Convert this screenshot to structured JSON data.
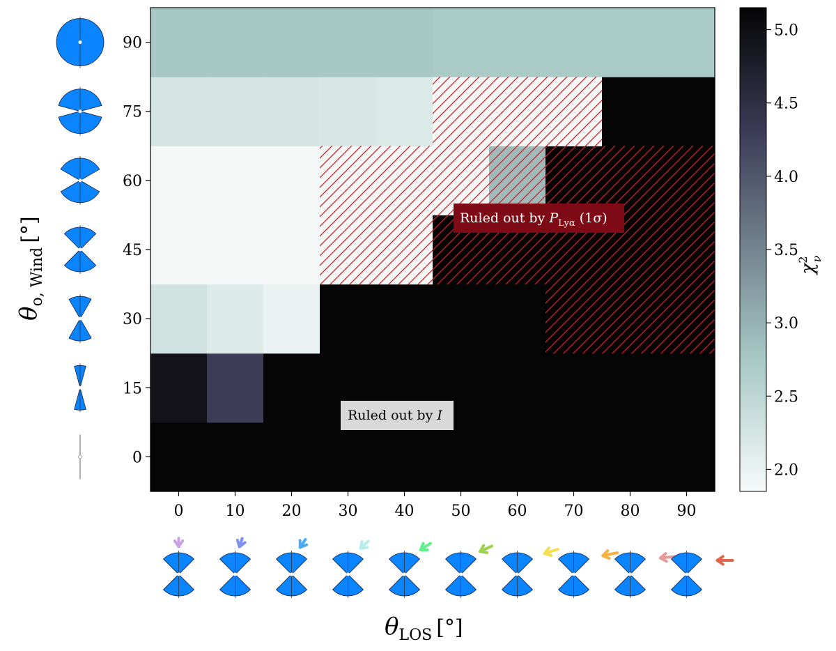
{
  "chart_data": {
    "type": "heatmap",
    "x_label": "θ",
    "x_label_sub": "LOS",
    "x_label_unit": "[°]",
    "y_label": "θ",
    "y_label_sub": "o, Wind",
    "y_label_unit": "[°]",
    "x_values": [
      0,
      10,
      20,
      30,
      40,
      50,
      60,
      70,
      80,
      90
    ],
    "y_values": [
      0,
      15,
      30,
      45,
      60,
      75,
      90
    ],
    "x_ticks": [
      "0",
      "10",
      "20",
      "30",
      "40",
      "50",
      "60",
      "70",
      "80",
      "90"
    ],
    "y_ticks": [
      "0",
      "15",
      "30",
      "45",
      "60",
      "75",
      "90"
    ],
    "colorbar": {
      "label": "χ",
      "label_sup": "2",
      "label_sub": "ν",
      "range": [
        1.85,
        5.15
      ],
      "ticks": [
        "2.0",
        "2.5",
        "3.0",
        "3.5",
        "4.0",
        "4.5",
        "5.0"
      ],
      "tick_values": [
        2.0,
        2.5,
        3.0,
        3.5,
        4.0,
        4.5,
        5.0
      ],
      "colors": [
        "#f7fbfa",
        "#a8c9c6",
        "#3a3a55",
        "#050505"
      ]
    },
    "values": [
      [
        5.15,
        5.15,
        5.15,
        5.15,
        5.15,
        5.15,
        5.15,
        5.15,
        5.15,
        5.15
      ],
      [
        4.95,
        4.3,
        5.15,
        5.15,
        5.15,
        5.15,
        5.15,
        5.15,
        5.15,
        5.15
      ],
      [
        2.3,
        2.15,
        2.0,
        5.15,
        5.15,
        5.15,
        5.15,
        5.15,
        5.15,
        5.15
      ],
      [
        1.9,
        1.9,
        1.9,
        1.9,
        1.9,
        5.15,
        5.15,
        5.15,
        5.15,
        5.15
      ],
      [
        1.9,
        1.9,
        1.9,
        1.9,
        1.9,
        1.9,
        2.9,
        5.15,
        5.15,
        5.15
      ],
      [
        2.25,
        2.25,
        2.25,
        2.2,
        2.15,
        1.9,
        1.9,
        1.9,
        5.15,
        5.15
      ],
      [
        2.75,
        2.75,
        2.75,
        2.75,
        2.75,
        2.72,
        2.72,
        2.72,
        2.72,
        2.72
      ]
    ],
    "hatched": [
      [
        0,
        0,
        0,
        0,
        0,
        0,
        0,
        0,
        0,
        0
      ],
      [
        0,
        0,
        0,
        0,
        0,
        0,
        0,
        0,
        0,
        0
      ],
      [
        0,
        0,
        0,
        0,
        0,
        0,
        0,
        1,
        1,
        1
      ],
      [
        0,
        0,
        0,
        1,
        1,
        1,
        1,
        1,
        1,
        1
      ],
      [
        0,
        0,
        0,
        1,
        1,
        1,
        1,
        1,
        1,
        1
      ],
      [
        0,
        0,
        0,
        0,
        0,
        1,
        1,
        1,
        0,
        0
      ],
      [
        0,
        0,
        0,
        0,
        0,
        0,
        0,
        0,
        0,
        0
      ]
    ],
    "hatch_color": "#e8141c",
    "annotations": [
      {
        "text": "Ruled out by ",
        "math": "P",
        "math_sub": "Lyα",
        "suffix": " (1σ)",
        "style": "dark-red",
        "bg": "#7d0a14"
      },
      {
        "text": "Ruled out by ",
        "math": "I",
        "math_sub": "",
        "suffix": "",
        "style": "light-gray",
        "bg": "#d9d9d9"
      }
    ],
    "diagram_color": "#0a84ff",
    "los_arrow_colors": [
      "#c9a0e6",
      "#7d8ff0",
      "#4aaaf2",
      "#b6eeee",
      "#5ff08a",
      "#9fd24c",
      "#f6de52",
      "#f5b040",
      "#e69a96",
      "#e2664a"
    ],
    "grid": false,
    "legend": "none"
  }
}
